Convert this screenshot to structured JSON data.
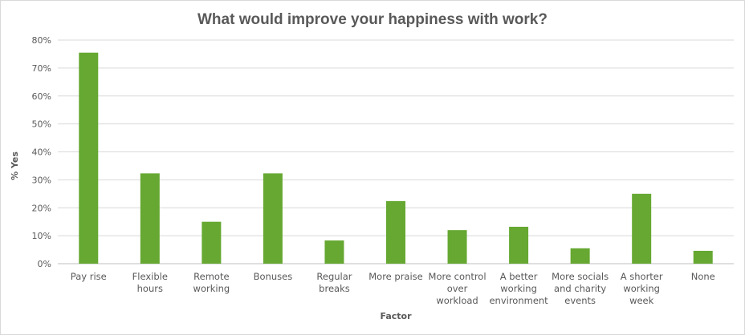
{
  "chart_data": {
    "type": "bar",
    "title": "What would improve your happiness with work?",
    "xlabel": "Factor",
    "ylabel": "% Yes",
    "ylim": [
      0,
      80
    ],
    "yticks": [
      "0%",
      "10%",
      "20%",
      "30%",
      "40%",
      "50%",
      "60%",
      "70%",
      "80%"
    ],
    "grid": true,
    "legend": "none",
    "bar_color": "#66a832",
    "categories": [
      [
        "Pay rise"
      ],
      [
        "Flexible",
        "hours"
      ],
      [
        "Remote",
        "working"
      ],
      [
        "Bonuses"
      ],
      [
        "Regular",
        "breaks"
      ],
      [
        "More praise"
      ],
      [
        "More control",
        "over",
        "workload"
      ],
      [
        "A better",
        "working",
        "environment"
      ],
      [
        "More socials",
        "and charity",
        "events"
      ],
      [
        "A shorter",
        "working",
        "week"
      ],
      [
        "None"
      ]
    ],
    "values": [
      75.5,
      32.3,
      15.0,
      32.3,
      8.3,
      22.4,
      12.0,
      13.2,
      5.5,
      25.0,
      4.6
    ]
  }
}
